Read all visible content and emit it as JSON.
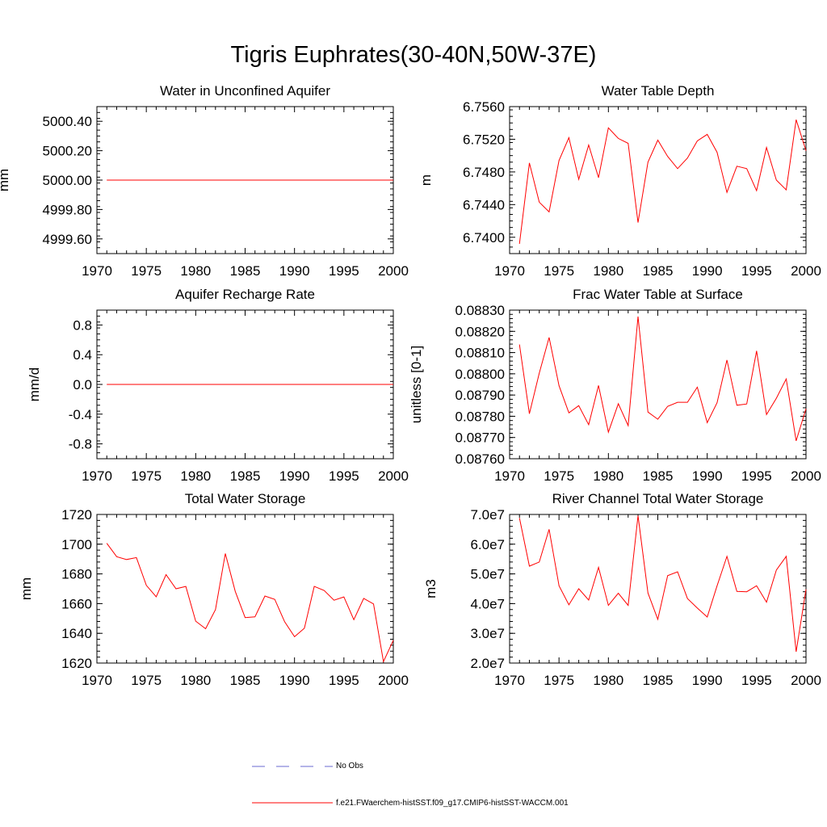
{
  "title": "Tigris Euphrates(30-40N,50W-37E)",
  "colors": {
    "model": "#ff0000",
    "obs": "#6a6ad2",
    "axis": "#000000"
  },
  "legend": {
    "obs_label": "No Obs",
    "model_label": "f.e21.FWaerchem-histSST.f09_g17.CMIP6-histSST-WACCM.001"
  },
  "chart_data": [
    {
      "type": "line",
      "title": "Water in Unconfined Aquifer",
      "ylabel": "mm",
      "xlim": [
        1970,
        2000
      ],
      "xticks": [
        "1970",
        "1975",
        "1980",
        "1985",
        "1990",
        "1995",
        "2000"
      ],
      "ylim": [
        4999.5,
        5000.5
      ],
      "yticks": [
        "4999.60",
        "4999.80",
        "5000.00",
        "5000.20",
        "5000.40"
      ],
      "series": [
        {
          "x_start": 1971,
          "values": [
            5000,
            5000,
            5000,
            5000,
            5000,
            5000,
            5000,
            5000,
            5000,
            5000,
            5000,
            5000,
            5000,
            5000,
            5000,
            5000,
            5000,
            5000,
            5000,
            5000,
            5000,
            5000,
            5000,
            5000,
            5000,
            5000,
            5000,
            5000,
            5000,
            5000
          ]
        }
      ]
    },
    {
      "type": "line",
      "title": "Water Table Depth",
      "ylabel": "m",
      "xlim": [
        1970,
        2000
      ],
      "xticks": [
        "1970",
        "1975",
        "1980",
        "1985",
        "1990",
        "1995",
        "2000"
      ],
      "ylim": [
        6.738,
        6.756
      ],
      "yticks": [
        "6.7400",
        "6.7440",
        "6.7480",
        "6.7520",
        "6.7560"
      ],
      "series": [
        {
          "x_start": 1971,
          "values": [
            6.7392,
            6.7491,
            6.7443,
            6.7431,
            6.7494,
            6.7522,
            6.7471,
            6.7513,
            6.7473,
            6.7534,
            6.7521,
            6.7515,
            6.7418,
            6.7492,
            6.7519,
            6.7499,
            6.7484,
            6.7497,
            6.7518,
            6.7526,
            6.7504,
            6.7455,
            6.7487,
            6.7484,
            6.7457,
            6.751,
            6.747,
            6.7458,
            6.7544,
            6.7506
          ]
        }
      ]
    },
    {
      "type": "line",
      "title": "Aquifer Recharge Rate",
      "ylabel": "mm/d",
      "xlim": [
        1970,
        2000
      ],
      "xticks": [
        "1970",
        "1975",
        "1980",
        "1985",
        "1990",
        "1995",
        "2000"
      ],
      "ylim": [
        -1.0,
        1.0
      ],
      "yticks": [
        "-0.8",
        "-0.4",
        "0.0",
        "0.4",
        "0.8"
      ],
      "series": [
        {
          "x_start": 1971,
          "values": [
            0,
            0,
            0,
            0,
            0,
            0,
            0,
            0,
            0,
            0,
            0,
            0,
            0,
            0,
            0,
            0,
            0,
            0,
            0,
            0,
            0,
            0,
            0,
            0,
            0,
            0,
            0,
            0,
            0,
            0
          ]
        }
      ]
    },
    {
      "type": "line",
      "title": "Frac Water Table at Surface",
      "ylabel": "unitless [0-1]",
      "xlim": [
        1970,
        2000
      ],
      "xticks": [
        "1970",
        "1975",
        "1980",
        "1985",
        "1990",
        "1995",
        "2000"
      ],
      "ylim": [
        0.0876,
        0.0883
      ],
      "yticks": [
        "0.08760",
        "0.08770",
        "0.08780",
        "0.08790",
        "0.08800",
        "0.08810",
        "0.08820",
        "0.08830"
      ],
      "series": [
        {
          "x_start": 1971,
          "values": [
            0.088138,
            0.087812,
            0.088003,
            0.088171,
            0.087944,
            0.087816,
            0.08785,
            0.08776,
            0.087945,
            0.087725,
            0.087859,
            0.087756,
            0.08827,
            0.08782,
            0.087786,
            0.087847,
            0.087866,
            0.087866,
            0.087937,
            0.08777,
            0.087864,
            0.088065,
            0.087852,
            0.087858,
            0.088108,
            0.087808,
            0.087885,
            0.087976,
            0.087684,
            0.087836
          ]
        }
      ]
    },
    {
      "type": "line",
      "title": "Total Water Storage",
      "ylabel": "mm",
      "xlim": [
        1970,
        2000
      ],
      "xticks": [
        "1970",
        "1975",
        "1980",
        "1985",
        "1990",
        "1995",
        "2000"
      ],
      "ylim": [
        1620,
        1720
      ],
      "yticks": [
        "1620",
        "1640",
        "1660",
        "1680",
        "1700",
        "1720"
      ],
      "series": [
        {
          "x_start": 1971,
          "values": [
            1700.6,
            1691.6,
            1689.7,
            1691.0,
            1672.3,
            1664.6,
            1679.5,
            1670.0,
            1671.6,
            1648.2,
            1643.1,
            1656.0,
            1693.7,
            1668.2,
            1650.6,
            1651.1,
            1665.1,
            1662.9,
            1647.8,
            1637.7,
            1643.4,
            1671.6,
            1668.8,
            1662.3,
            1664.5,
            1649.2,
            1663.5,
            1659.8,
            1621.0,
            1635.3
          ]
        }
      ]
    },
    {
      "type": "line",
      "title": "River Channel Total Water Storage",
      "ylabel": "m3",
      "xlim": [
        1970,
        2000
      ],
      "xticks": [
        "1970",
        "1975",
        "1980",
        "1985",
        "1990",
        "1995",
        "2000"
      ],
      "ylim": [
        20000000,
        70000000
      ],
      "yticks": [
        "2.0e7",
        "3.0e7",
        "4.0e7",
        "5.0e7",
        "6.0e7",
        "7.0e7"
      ],
      "series": [
        {
          "x_start": 1971,
          "values": [
            68800000,
            52600000,
            54000000,
            65000000,
            46000000,
            39600000,
            45000000,
            41200000,
            52200000,
            39400000,
            43500000,
            39400000,
            69600000,
            43600000,
            34700000,
            49400000,
            50700000,
            41700000,
            38500000,
            35500000,
            46000000,
            55900000,
            44100000,
            44000000,
            46000000,
            40500000,
            51300000,
            55900000,
            23800000,
            44800000
          ]
        }
      ]
    }
  ]
}
